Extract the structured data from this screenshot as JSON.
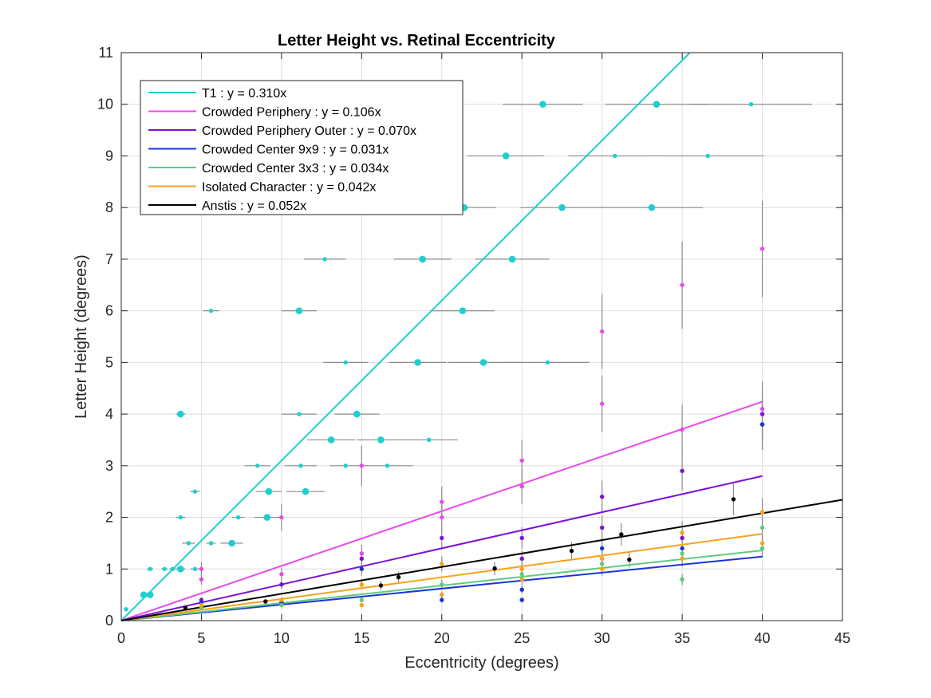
{
  "chart_data": {
    "type": "scatter",
    "title": "Letter Height vs. Retinal Eccentricity",
    "xlabel": "Eccentricity (degrees)",
    "ylabel": "Letter Height (degrees)",
    "xlim": [
      0,
      45
    ],
    "ylim": [
      0,
      11
    ],
    "xticks": [
      0,
      5,
      10,
      15,
      20,
      25,
      30,
      35,
      40,
      45
    ],
    "yticks": [
      0,
      1,
      2,
      3,
      4,
      5,
      6,
      7,
      8,
      9,
      10,
      11
    ],
    "grid": true,
    "legend_position": "top-left",
    "error_bar_color": "#8c8c8c",
    "series": [
      {
        "name": "T1 : y = 0.310x",
        "color": "#1fcfcf",
        "slope": 0.31,
        "fit_range": [
          0,
          45
        ],
        "error_orientation": "horizontal",
        "points": [
          {
            "x": 0.3,
            "y": 0.22,
            "err": 0,
            "big": false
          },
          {
            "x": 1.4,
            "y": 0.5,
            "err": 0,
            "big": true
          },
          {
            "x": 1.8,
            "y": 0.5,
            "err": 0,
            "big": true
          },
          {
            "x": 1.8,
            "y": 1.0,
            "err": 0.2,
            "big": false
          },
          {
            "x": 2.7,
            "y": 1.0,
            "err": 0.2,
            "big": false
          },
          {
            "x": 3.2,
            "y": 1.0,
            "err": 0.2,
            "big": false
          },
          {
            "x": 3.7,
            "y": 1.0,
            "err": 0.3,
            "big": true
          },
          {
            "x": 4.6,
            "y": 1.0,
            "err": 0.3,
            "big": false
          },
          {
            "x": 4.2,
            "y": 1.5,
            "err": 0.4,
            "big": false
          },
          {
            "x": 5.6,
            "y": 1.5,
            "err": 0.3,
            "big": false
          },
          {
            "x": 6.9,
            "y": 1.5,
            "err": 0.7,
            "big": true
          },
          {
            "x": 3.7,
            "y": 2.0,
            "err": 0.3,
            "big": false
          },
          {
            "x": 7.3,
            "y": 2.0,
            "err": 0.4,
            "big": false
          },
          {
            "x": 9.1,
            "y": 2.0,
            "err": 0.8,
            "big": true
          },
          {
            "x": 4.6,
            "y": 2.5,
            "err": 0.3,
            "big": false
          },
          {
            "x": 9.2,
            "y": 2.5,
            "err": 0.8,
            "big": true
          },
          {
            "x": 11.5,
            "y": 2.5,
            "err": 1.2,
            "big": true
          },
          {
            "x": 8.5,
            "y": 3.0,
            "err": 0.8,
            "big": false
          },
          {
            "x": 11.2,
            "y": 3.0,
            "err": 1.0,
            "big": false
          },
          {
            "x": 14.0,
            "y": 3.0,
            "err": 1.0,
            "big": false
          },
          {
            "x": 16.6,
            "y": 3.0,
            "err": 1.6,
            "big": false
          },
          {
            "x": 13.1,
            "y": 3.5,
            "err": 1.5,
            "big": true
          },
          {
            "x": 16.2,
            "y": 3.5,
            "err": 1.5,
            "big": true
          },
          {
            "x": 19.2,
            "y": 3.5,
            "err": 1.8,
            "big": false
          },
          {
            "x": 3.7,
            "y": 4.0,
            "err": 0.3,
            "big": true
          },
          {
            "x": 11.1,
            "y": 4.0,
            "err": 1.1,
            "big": false
          },
          {
            "x": 14.7,
            "y": 4.0,
            "err": 1.4,
            "big": true
          },
          {
            "x": 14.0,
            "y": 5.0,
            "err": 1.4,
            "big": false
          },
          {
            "x": 18.5,
            "y": 5.0,
            "err": 1.8,
            "big": true
          },
          {
            "x": 22.6,
            "y": 5.0,
            "err": 2.2,
            "big": true
          },
          {
            "x": 26.6,
            "y": 5.0,
            "err": 2.6,
            "big": false
          },
          {
            "x": 5.6,
            "y": 6.0,
            "err": 0.5,
            "big": false
          },
          {
            "x": 11.1,
            "y": 6.0,
            "err": 1.1,
            "big": true
          },
          {
            "x": 21.3,
            "y": 6.0,
            "err": 2.0,
            "big": true
          },
          {
            "x": 12.7,
            "y": 7.0,
            "err": 1.3,
            "big": false
          },
          {
            "x": 18.8,
            "y": 7.0,
            "err": 1.8,
            "big": true
          },
          {
            "x": 24.4,
            "y": 7.0,
            "err": 2.3,
            "big": true
          },
          {
            "x": 21.4,
            "y": 8.0,
            "err": 2.0,
            "big": true
          },
          {
            "x": 27.5,
            "y": 8.0,
            "err": 2.6,
            "big": true
          },
          {
            "x": 33.1,
            "y": 8.0,
            "err": 3.2,
            "big": true
          },
          {
            "x": 24.0,
            "y": 9.0,
            "err": 2.4,
            "big": true
          },
          {
            "x": 30.8,
            "y": 9.0,
            "err": 2.9,
            "big": false
          },
          {
            "x": 36.6,
            "y": 9.0,
            "err": 3.5,
            "big": false
          },
          {
            "x": 26.3,
            "y": 10.0,
            "err": 2.5,
            "big": true
          },
          {
            "x": 33.4,
            "y": 10.0,
            "err": 3.2,
            "big": true
          },
          {
            "x": 39.3,
            "y": 10.0,
            "err": 3.8,
            "big": false
          }
        ]
      },
      {
        "name": "Crowded Periphery : y = 0.106x",
        "color": "#e94ae9",
        "slope": 0.106,
        "fit_range": [
          0,
          40
        ],
        "error_orientation": "vertical",
        "points": [
          {
            "x": 5,
            "y": 0.8
          },
          {
            "x": 5,
            "y": 1.0
          },
          {
            "x": 10,
            "y": 0.9
          },
          {
            "x": 10,
            "y": 2.0
          },
          {
            "x": 15,
            "y": 1.3
          },
          {
            "x": 15,
            "y": 3.0
          },
          {
            "x": 20,
            "y": 2.0
          },
          {
            "x": 20,
            "y": 2.3
          },
          {
            "x": 25,
            "y": 2.6
          },
          {
            "x": 25,
            "y": 3.1
          },
          {
            "x": 30,
            "y": 4.2
          },
          {
            "x": 30,
            "y": 5.6
          },
          {
            "x": 35,
            "y": 3.7
          },
          {
            "x": 35,
            "y": 6.5
          },
          {
            "x": 40,
            "y": 4.1
          },
          {
            "x": 40,
            "y": 7.2
          }
        ]
      },
      {
        "name": "Crowded Periphery Outer : y = 0.070x",
        "color": "#7b11d9",
        "slope": 0.07,
        "fit_range": [
          0,
          40
        ],
        "error_orientation": "vertical",
        "points": [
          {
            "x": 5,
            "y": 0.4
          },
          {
            "x": 10,
            "y": 0.7
          },
          {
            "x": 15,
            "y": 1.2
          },
          {
            "x": 20,
            "y": 1.6
          },
          {
            "x": 25,
            "y": 1.2
          },
          {
            "x": 25,
            "y": 1.6
          },
          {
            "x": 30,
            "y": 1.8
          },
          {
            "x": 30,
            "y": 2.4
          },
          {
            "x": 35,
            "y": 1.6
          },
          {
            "x": 35,
            "y": 2.9
          },
          {
            "x": 40,
            "y": 3.8
          },
          {
            "x": 40,
            "y": 4.0
          }
        ]
      },
      {
        "name": "Crowded Center 9x9 : y = 0.031x",
        "color": "#1a35d6",
        "slope": 0.031,
        "fit_range": [
          0,
          40
        ],
        "error_orientation": "vertical",
        "points": [
          {
            "x": 5,
            "y": 0.35
          },
          {
            "x": 10,
            "y": 0.35
          },
          {
            "x": 15,
            "y": 1.0
          },
          {
            "x": 20,
            "y": 0.4
          },
          {
            "x": 25,
            "y": 0.4
          },
          {
            "x": 25,
            "y": 0.6
          },
          {
            "x": 30,
            "y": 1.4
          },
          {
            "x": 35,
            "y": 1.4
          },
          {
            "x": 40,
            "y": 3.8
          }
        ]
      },
      {
        "name": "Crowded Center 3x3 : y = 0.034x",
        "color": "#5fca7e",
        "slope": 0.034,
        "fit_range": [
          0,
          40
        ],
        "error_orientation": "vertical",
        "points": [
          {
            "x": 5,
            "y": 0.25
          },
          {
            "x": 10,
            "y": 0.3
          },
          {
            "x": 15,
            "y": 0.4
          },
          {
            "x": 20,
            "y": 0.7
          },
          {
            "x": 25,
            "y": 0.9
          },
          {
            "x": 30,
            "y": 1.1
          },
          {
            "x": 35,
            "y": 0.8
          },
          {
            "x": 35,
            "y": 1.3
          },
          {
            "x": 40,
            "y": 1.4
          },
          {
            "x": 40,
            "y": 1.8
          }
        ]
      },
      {
        "name": "Isolated Character : y = 0.042x",
        "color": "#f7a21b",
        "slope": 0.042,
        "fit_range": [
          0,
          40
        ],
        "error_orientation": "vertical",
        "points": [
          {
            "x": 5,
            "y": 0.3
          },
          {
            "x": 10,
            "y": 0.4
          },
          {
            "x": 15,
            "y": 0.3
          },
          {
            "x": 15,
            "y": 0.7
          },
          {
            "x": 20,
            "y": 0.5
          },
          {
            "x": 20,
            "y": 1.1
          },
          {
            "x": 25,
            "y": 0.8
          },
          {
            "x": 25,
            "y": 1.0
          },
          {
            "x": 30,
            "y": 1.0
          },
          {
            "x": 30,
            "y": 1.2
          },
          {
            "x": 35,
            "y": 1.2
          },
          {
            "x": 35,
            "y": 1.7
          },
          {
            "x": 40,
            "y": 1.5
          },
          {
            "x": 40,
            "y": 2.1
          }
        ]
      },
      {
        "name": "Anstis : y = 0.052x",
        "color": "#000000",
        "slope": 0.052,
        "fit_range": [
          0,
          45
        ],
        "error_orientation": "vertical",
        "points": [
          {
            "x": 4.0,
            "y": 0.25
          },
          {
            "x": 9.0,
            "y": 0.37
          },
          {
            "x": 16.2,
            "y": 0.68
          },
          {
            "x": 17.3,
            "y": 0.84
          },
          {
            "x": 23.3,
            "y": 1.01
          },
          {
            "x": 28.1,
            "y": 1.35
          },
          {
            "x": 31.2,
            "y": 1.67
          },
          {
            "x": 31.7,
            "y": 1.18
          },
          {
            "x": 38.2,
            "y": 2.35
          }
        ]
      }
    ]
  }
}
